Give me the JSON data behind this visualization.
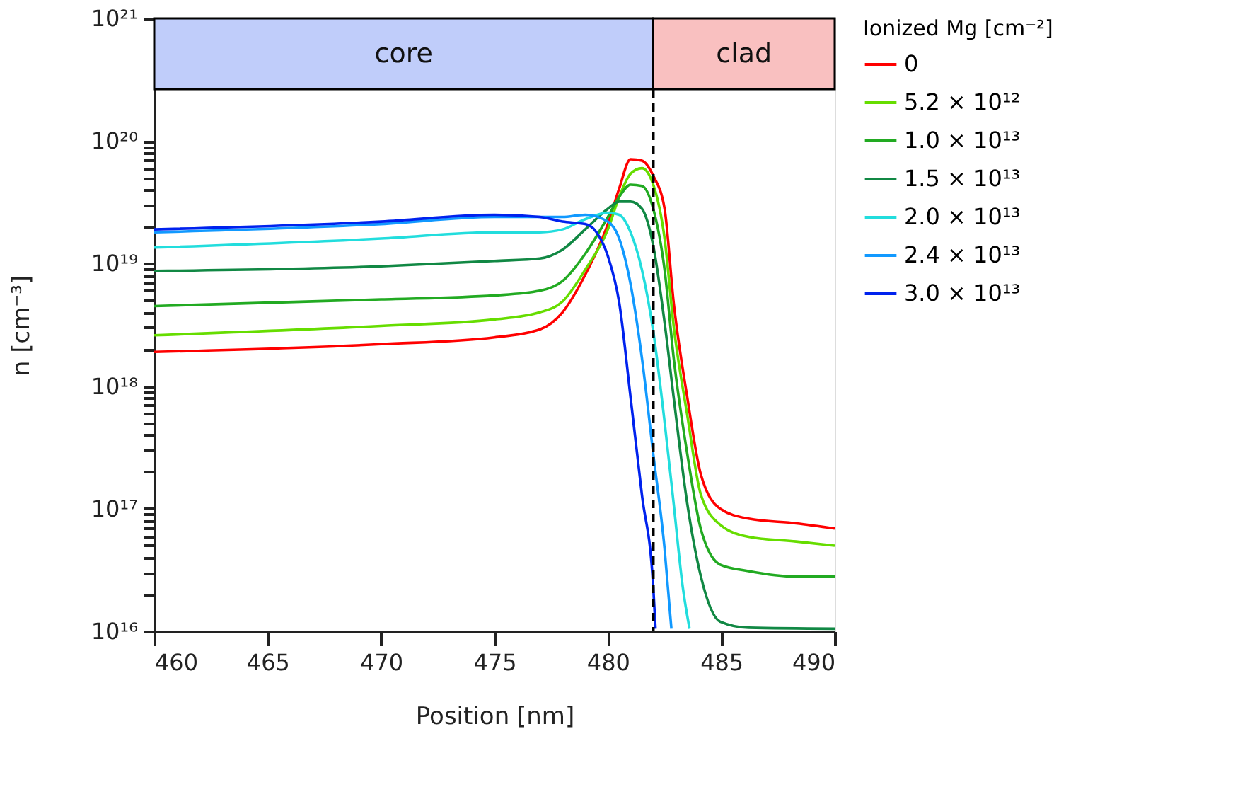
{
  "chart_data": {
    "type": "line",
    "xlabel": "Position [nm]",
    "ylabel": "n [cm⁻³]",
    "legend_title": "Ionized Mg [cm⁻²]",
    "log": "y",
    "grid": false,
    "legend": "right",
    "marker": "none",
    "line_style": "solid",
    "xlim": [
      460,
      490
    ],
    "xticks": [
      460,
      465,
      470,
      475,
      480,
      485,
      490
    ],
    "ylim": [
      1e+16,
      1e+21
    ],
    "yticks": [
      {
        "value": 1e+16,
        "label": "10¹⁶"
      },
      {
        "value": 2e+16,
        "label": null
      },
      {
        "value": 3e+16,
        "label": null
      },
      {
        "value": 4e+16,
        "label": null
      },
      {
        "value": 5e+16,
        "label": null
      },
      {
        "value": 6e+16,
        "label": null
      },
      {
        "value": 7e+16,
        "label": null
      },
      {
        "value": 8e+16,
        "label": null
      },
      {
        "value": 9e+16,
        "label": null
      },
      {
        "value": 1e+17,
        "label": "10¹⁷"
      },
      {
        "value": 2e+17,
        "label": null
      },
      {
        "value": 3e+17,
        "label": null
      },
      {
        "value": 4e+17,
        "label": null
      },
      {
        "value": 5e+17,
        "label": null
      },
      {
        "value": 6e+17,
        "label": null
      },
      {
        "value": 7e+17,
        "label": null
      },
      {
        "value": 8e+17,
        "label": null
      },
      {
        "value": 9e+17,
        "label": null
      },
      {
        "value": 1e+18,
        "label": "10¹⁸"
      },
      {
        "value": 2e+18,
        "label": null
      },
      {
        "value": 3e+18,
        "label": null
      },
      {
        "value": 4e+18,
        "label": null
      },
      {
        "value": 5e+18,
        "label": null
      },
      {
        "value": 6e+18,
        "label": null
      },
      {
        "value": 7e+18,
        "label": null
      },
      {
        "value": 8e+18,
        "label": null
      },
      {
        "value": 9e+18,
        "label": null
      },
      {
        "value": 1e+19,
        "label": "10¹⁹"
      },
      {
        "value": 2e+19,
        "label": null
      },
      {
        "value": 3e+19,
        "label": null
      },
      {
        "value": 4e+19,
        "label": null
      },
      {
        "value": 5e+19,
        "label": null
      },
      {
        "value": 6e+19,
        "label": null
      },
      {
        "value": 7e+19,
        "label": null
      },
      {
        "value": 8e+19,
        "label": null
      },
      {
        "value": 9e+19,
        "label": null
      },
      {
        "value": 1e+20,
        "label": "10²⁰"
      },
      {
        "value": 1e+21,
        "label": "10²¹"
      }
    ],
    "bands": [
      {
        "axis": "x",
        "from": 460,
        "to": 482,
        "label": "core",
        "color": "#c0cdfa"
      },
      {
        "axis": "x",
        "from": 482,
        "to": 490,
        "label": "clad",
        "color": "#f9c0c0"
      }
    ],
    "ref_lines": [
      {
        "axis": "x",
        "value": 482,
        "line_style": "dashed",
        "color": "#000000"
      }
    ],
    "series": [
      {
        "name": "0",
        "color": "#ff0000",
        "x": [
          460,
          470,
          475,
          477,
          478,
          479,
          480,
          480.5,
          481,
          481.5,
          482,
          482.5,
          482.9,
          483.5,
          484.1,
          484.95,
          486.2,
          488.3,
          490
        ],
        "values": [
          1.9e+18,
          2.2e+18,
          2.5e+18,
          2.9e+18,
          4e+18,
          8.1e+18,
          2.1e+19,
          4.1e+19,
          7.1e+19,
          6.9e+19,
          5.2e+19,
          2.8e+19,
          4.8e+18,
          8.1e+17,
          1.9e+17,
          1e+17,
          8.3e+16,
          7.6e+16,
          6.9e+16
        ]
      },
      {
        "name": "5.2 × 10¹²",
        "color": "#66dd00",
        "x": [
          460,
          470,
          475,
          477,
          478,
          479,
          480,
          480.5,
          481,
          481.5,
          482,
          482.5,
          482.9,
          483.5,
          484.1,
          484.95,
          486.2,
          488.3,
          490
        ],
        "values": [
          2.6e+18,
          3.1e+18,
          3.5e+18,
          4e+18,
          4.9e+18,
          8.9e+18,
          1.9e+19,
          3.5e+19,
          5.4e+19,
          6e+19,
          4.4e+19,
          1.6e+19,
          3.1e+18,
          5.8e+17,
          1.3e+17,
          7.4e+16,
          5.9e+16,
          5.4e+16,
          5e+16
        ]
      },
      {
        "name": "1.0 × 10¹³",
        "color": "#22aa22",
        "x": [
          460,
          470,
          475,
          477,
          478,
          479,
          480,
          480.5,
          481,
          481.5,
          482,
          482.5,
          482.9,
          483.5,
          484.1,
          484.95,
          486.2,
          488.3,
          490
        ],
        "values": [
          4.5e+18,
          5.1e+18,
          5.5e+18,
          6e+18,
          7.2e+18,
          1.2e+19,
          2.4e+19,
          3.5e+19,
          4.4e+19,
          4.3e+19,
          2.8e+19,
          8.9e+18,
          1.7e+18,
          2.8e+17,
          6.8e+16,
          3.5e+16,
          3.1e+16,
          2.8e+16,
          2.8e+16
        ]
      },
      {
        "name": "1.5 × 10¹³",
        "color": "#118844",
        "x": [
          460,
          470,
          475,
          477,
          478,
          479,
          480,
          480.5,
          481,
          481.5,
          482,
          482.5,
          482.9,
          483.5,
          484.1,
          484.95,
          486.2,
          490
        ],
        "values": [
          8.7e+18,
          9.5e+18,
          1.05e+19,
          1.1e+19,
          1.3e+19,
          1.9e+19,
          2.8e+19,
          3.2e+19,
          3.2e+19,
          2.8e+19,
          1.4e+19,
          3.3e+18,
          8.1e+17,
          1.1e+17,
          2.8e+16,
          1.2e+16,
          1.07e+16,
          1.05e+16
        ]
      },
      {
        "name": "2.0 × 10¹³",
        "color": "#22dddd",
        "x": [
          460,
          470,
          475,
          477,
          478,
          479,
          480,
          480.5,
          481,
          481.5,
          482,
          482.5,
          482.9,
          483.3,
          483.6
        ],
        "values": [
          1.35e+19,
          1.6e+19,
          1.8e+19,
          1.8e+19,
          1.9e+19,
          2.3e+19,
          2.6e+19,
          2.5e+19,
          1.8e+19,
          8.9e+18,
          2.8e+18,
          5.1e+17,
          1.1e+17,
          2.3e+16,
          1.05e+16
        ]
      },
      {
        "name": "2.4 × 10¹³",
        "color": "#1199ff",
        "x": [
          460,
          470,
          475,
          478,
          479,
          480,
          480.5,
          481,
          481.5,
          482,
          482.5,
          482.8
        ],
        "values": [
          1.8e+19,
          2.1e+19,
          2.4e+19,
          2.4e+19,
          2.5e+19,
          2.2e+19,
          1.6e+19,
          6.8e+18,
          1.7e+18,
          2.8e+17,
          4.7e+16,
          1.05e+16
        ]
      },
      {
        "name": "3.0 × 10¹³",
        "color": "#0022ee",
        "x": [
          460,
          470,
          475,
          477,
          478,
          479,
          479.5,
          480,
          480.5,
          481,
          481.5,
          482,
          482.1
        ],
        "values": [
          1.9e+19,
          2.2e+19,
          2.5e+19,
          2.4e+19,
          2.2e+19,
          2.1e+19,
          1.8e+19,
          1.15e+19,
          4.8e+18,
          8.1e+17,
          1.3e+17,
          2.3e+16,
          1.05e+16
        ]
      }
    ]
  }
}
